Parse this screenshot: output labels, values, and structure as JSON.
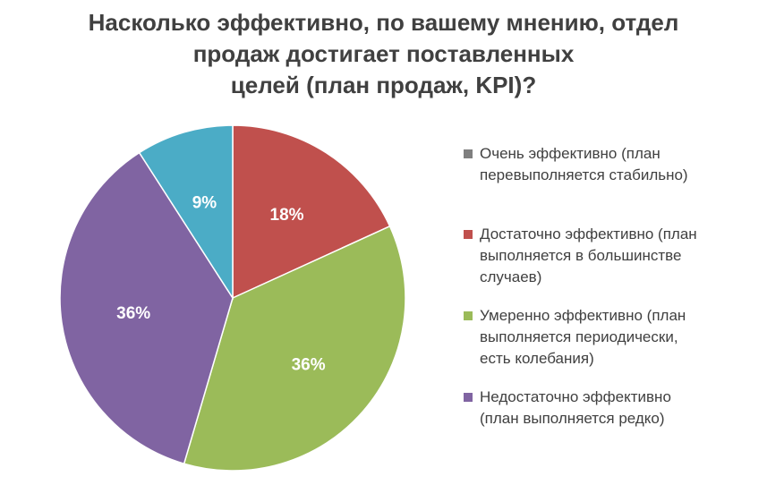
{
  "chart_data": {
    "type": "pie",
    "title_lines": [
      "Насколько эффективно, по вашему мнению, отдел",
      "продаж достигает поставленных",
      "целей (план продаж, KPI)?"
    ],
    "slices": [
      {
        "label_lines": [
          "Очень эффективно (план",
          "перевыполняется стабильно)"
        ],
        "value": 0,
        "color": "#7F7F7F",
        "data_label": ""
      },
      {
        "label_lines": [
          "Достаточно эффективно (план",
          "выполняется в большинстве",
          "случаев)"
        ],
        "value": 18,
        "color": "#C0504D",
        "data_label": "18%"
      },
      {
        "label_lines": [
          "Умеренно эффективно (план",
          "выполняется периодически,",
          "есть колебания)"
        ],
        "value": 36,
        "color": "#9BBB59",
        "data_label": "36%"
      },
      {
        "label_lines": [
          "Недостаточно эффективно",
          "(план выполняется редко)"
        ],
        "value": 36,
        "color": "#8064A2",
        "data_label": "36%"
      },
      {
        "label_lines": [],
        "value": 9,
        "color": "#4BACC6",
        "data_label": "9%"
      }
    ],
    "legend_position": "right",
    "unit": "%"
  }
}
